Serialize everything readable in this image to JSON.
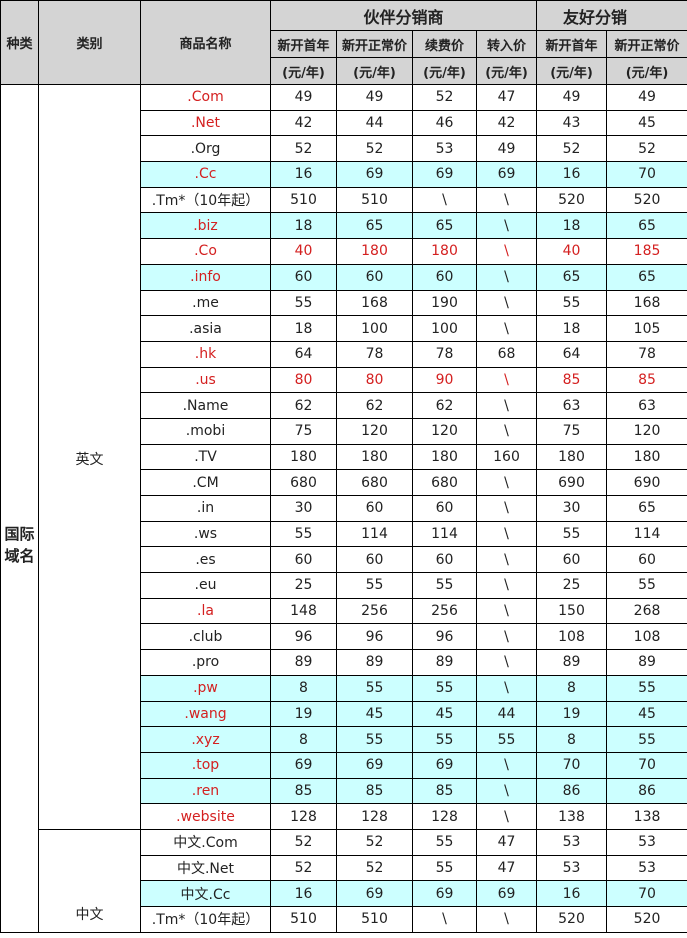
{
  "table": {
    "headers": {
      "kind": "种类",
      "category": "类别",
      "product": "商品名称",
      "groups": [
        "伙伴分销商",
        "友好分销"
      ],
      "columns": [
        "新开首年",
        "新开正常价",
        "续费价",
        "转入价",
        "新开首年",
        "新开正常价"
      ],
      "units": [
        "(元/年)",
        "(元/年)",
        "(元/年)",
        "(元/年)",
        "(元/年)",
        "(元/年)"
      ]
    },
    "kind": "国际域名",
    "sections": [
      {
        "category": "英文",
        "rows": [
          {
            "name": ".Com",
            "name_color": "#d42020",
            "values": [
              "49",
              "49",
              "52",
              "47",
              "49",
              "49"
            ]
          },
          {
            "name": ".Net",
            "name_color": "#d42020",
            "values": [
              "42",
              "44",
              "46",
              "42",
              "43",
              "45"
            ]
          },
          {
            "name": ".Org",
            "values": [
              "52",
              "52",
              "53",
              "49",
              "52",
              "52"
            ]
          },
          {
            "name": ".Cc",
            "name_color": "#d42020",
            "background": "#ccffff",
            "values": [
              "16",
              "69",
              "69",
              "69",
              "16",
              "70"
            ]
          },
          {
            "name": ".Tm*（10年起）",
            "values": [
              "510",
              "510",
              "\\",
              "\\",
              "520",
              "520"
            ]
          },
          {
            "name": ".biz",
            "name_color": "#d42020",
            "background": "#ccffff",
            "values": [
              "18",
              "65",
              "65",
              "\\",
              "18",
              "65"
            ]
          },
          {
            "name": ".Co",
            "name_color": "#d42020",
            "value_color": "#d42020",
            "values": [
              "40",
              "180",
              "180",
              "\\",
              "40",
              "185"
            ]
          },
          {
            "name": ".info",
            "name_color": "#d42020",
            "background": "#ccffff",
            "values": [
              "60",
              "60",
              "60",
              "\\",
              "65",
              "65"
            ]
          },
          {
            "name": ".me",
            "values": [
              "55",
              "168",
              "190",
              "\\",
              "55",
              "168"
            ]
          },
          {
            "name": ".asia",
            "values": [
              "18",
              "100",
              "100",
              "\\",
              "18",
              "105"
            ]
          },
          {
            "name": ".hk",
            "name_color": "#d42020",
            "values": [
              "64",
              "78",
              "78",
              "68",
              "64",
              "78"
            ]
          },
          {
            "name": ".us",
            "name_color": "#d42020",
            "value_color": "#d42020",
            "values": [
              "80",
              "80",
              "90",
              "\\",
              "85",
              "85"
            ]
          },
          {
            "name": ".Name",
            "values": [
              "62",
              "62",
              "62",
              "\\",
              "63",
              "63"
            ]
          },
          {
            "name": ".mobi",
            "values": [
              "75",
              "120",
              "120",
              "\\",
              "75",
              "120"
            ]
          },
          {
            "name": ".TV",
            "values": [
              "180",
              "180",
              "180",
              "160",
              "180",
              "180"
            ]
          },
          {
            "name": ".CM",
            "values": [
              "680",
              "680",
              "680",
              "\\",
              "690",
              "690"
            ]
          },
          {
            "name": ".in",
            "values": [
              "30",
              "60",
              "60",
              "\\",
              "30",
              "65"
            ]
          },
          {
            "name": ".ws",
            "values": [
              "55",
              "114",
              "114",
              "\\",
              "55",
              "114"
            ]
          },
          {
            "name": ".es",
            "values": [
              "60",
              "60",
              "60",
              "\\",
              "60",
              "60"
            ]
          },
          {
            "name": ".eu",
            "values": [
              "25",
              "55",
              "55",
              "\\",
              "25",
              "55"
            ]
          },
          {
            "name": ".la",
            "name_color": "#d42020",
            "values": [
              "148",
              "256",
              "256",
              "\\",
              "150",
              "268"
            ]
          },
          {
            "name": ".club",
            "values": [
              "96",
              "96",
              "96",
              "\\",
              "108",
              "108"
            ]
          },
          {
            "name": ".pro",
            "values": [
              "89",
              "89",
              "89",
              "\\",
              "89",
              "89"
            ]
          },
          {
            "name": ".pw",
            "name_color": "#d42020",
            "background": "#ccffff",
            "values": [
              "8",
              "55",
              "55",
              "\\",
              "8",
              "55"
            ]
          },
          {
            "name": ".wang",
            "name_color": "#d42020",
            "background": "#ccffff",
            "values": [
              "19",
              "45",
              "45",
              "44",
              "19",
              "45"
            ]
          },
          {
            "name": ".xyz",
            "name_color": "#d42020",
            "background": "#ccffff",
            "values": [
              "8",
              "55",
              "55",
              "55",
              "8",
              "55"
            ]
          },
          {
            "name": ".top",
            "name_color": "#d42020",
            "background": "#ccffff",
            "values": [
              "69",
              "69",
              "69",
              "\\",
              "70",
              "70"
            ]
          },
          {
            "name": ".ren",
            "name_color": "#d42020",
            "background": "#ccffff",
            "values": [
              "85",
              "85",
              "85",
              "\\",
              "86",
              "86"
            ]
          },
          {
            "name": ".website",
            "name_color": "#d42020",
            "values": [
              "128",
              "128",
              "128",
              "\\",
              "138",
              "138"
            ]
          }
        ]
      },
      {
        "category": "中文",
        "rows": [
          {
            "name": "中文.Com",
            "values": [
              "52",
              "52",
              "55",
              "47",
              "53",
              "53"
            ]
          },
          {
            "name": "中文.Net",
            "values": [
              "52",
              "52",
              "55",
              "47",
              "53",
              "53"
            ]
          },
          {
            "name": "中文.Cc",
            "background": "#ccffff",
            "values": [
              "16",
              "69",
              "69",
              "69",
              "16",
              "70"
            ]
          },
          {
            "name": ".Tm*（10年起）",
            "values": [
              "510",
              "510",
              "\\",
              "\\",
              "520",
              "520"
            ]
          }
        ]
      }
    ]
  }
}
